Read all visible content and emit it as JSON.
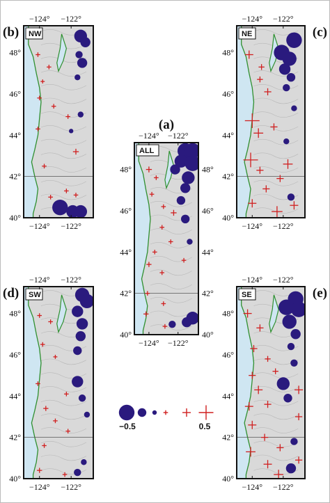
{
  "colors": {
    "negative": "#2a1a7e",
    "positive": "#d01f1f",
    "ocean": "#cfe6f2",
    "coast": "#2f8f2f",
    "relief": "#d9d9d9"
  },
  "panels": [
    {
      "id": "b",
      "label": "(b)",
      "tag": "NW",
      "lon_ticks": [
        "−124°",
        "−122°"
      ],
      "lat_ticks": [
        "48°",
        "46°",
        "44°",
        "42°",
        "40°"
      ],
      "lat_side": "left"
    },
    {
      "id": "c",
      "label": "(c)",
      "tag": "NE",
      "lon_ticks": [
        "−124°",
        "−122°"
      ],
      "lat_ticks": [
        "48°",
        "46°",
        "44°",
        "42°",
        "40°"
      ],
      "lat_side": "left"
    },
    {
      "id": "a",
      "label": "(a)",
      "tag": "ALL",
      "lon_ticks": [
        "−124°",
        "−122°"
      ],
      "lat_ticks": [
        "48°",
        "46°",
        "44°",
        "42°",
        "40°"
      ],
      "lat_side": "both"
    },
    {
      "id": "d",
      "label": "(d)",
      "tag": "SW",
      "lon_ticks": [
        "−124°",
        "−122°"
      ],
      "lat_ticks": [
        "48°",
        "46°",
        "44°",
        "42°",
        "40°"
      ],
      "lat_side": "left"
    },
    {
      "id": "e",
      "label": "(e)",
      "tag": "SE",
      "lon_ticks": [
        "−124°",
        "−122°"
      ],
      "lat_ticks": [
        "48°",
        "46°",
        "44°",
        "42°",
        "40°"
      ],
      "lat_side": "left"
    }
  ],
  "legend": {
    "min_label": "−0.5",
    "max_label": "0.5",
    "values": [
      -0.5,
      -0.25,
      -0.1,
      0.1,
      0.25,
      0.5
    ]
  },
  "stations": {
    "a": [
      [
        -121.5,
        48.9,
        -0.5
      ],
      [
        -121.0,
        48.9,
        -0.5
      ],
      [
        -121.8,
        48.4,
        -0.4
      ],
      [
        -121.0,
        48.3,
        -0.5
      ],
      [
        -122.2,
        48.0,
        -0.3
      ],
      [
        -121.3,
        47.6,
        -0.4
      ],
      [
        -121.5,
        47.1,
        -0.3
      ],
      [
        -121.8,
        46.5,
        -0.25
      ],
      [
        -121.5,
        45.6,
        -0.25
      ],
      [
        -121.2,
        44.5,
        -0.15
      ],
      [
        -121.0,
        40.8,
        -0.4
      ],
      [
        -121.4,
        40.6,
        -0.3
      ],
      [
        -122.4,
        40.5,
        -0.2
      ],
      [
        -124.0,
        48.0,
        0.15
      ],
      [
        -123.5,
        47.6,
        0.1
      ],
      [
        -123.8,
        46.8,
        0.1
      ],
      [
        -123.0,
        46.2,
        0.1
      ],
      [
        -122.3,
        45.9,
        0.15
      ],
      [
        -123.1,
        45.2,
        0.1
      ],
      [
        -122.5,
        44.5,
        0.1
      ],
      [
        -123.6,
        44.0,
        0.1
      ],
      [
        -124.0,
        43.4,
        0.12
      ],
      [
        -123.1,
        43.0,
        0.1
      ],
      [
        -121.6,
        43.6,
        0.1
      ],
      [
        -124.1,
        42.0,
        0.1
      ],
      [
        -123.0,
        41.5,
        0.1
      ],
      [
        -124.2,
        41.0,
        0.12
      ],
      [
        -122.9,
        40.4,
        0.1
      ]
    ],
    "b": [
      [
        -121.4,
        48.8,
        -0.4
      ],
      [
        -121.1,
        48.5,
        -0.3
      ],
      [
        -121.5,
        47.9,
        -0.2
      ],
      [
        -121.3,
        47.5,
        -0.3
      ],
      [
        -121.6,
        46.8,
        -0.15
      ],
      [
        -121.4,
        45.0,
        -0.15
      ],
      [
        -122.0,
        44.2,
        -0.1
      ],
      [
        -122.7,
        40.5,
        -0.5
      ],
      [
        -121.9,
        40.3,
        -0.4
      ],
      [
        -121.4,
        40.3,
        -0.4
      ],
      [
        -124.1,
        47.9,
        0.1
      ],
      [
        -123.4,
        47.3,
        0.1
      ],
      [
        -123.8,
        46.6,
        0.08
      ],
      [
        -124.0,
        45.8,
        0.1
      ],
      [
        -123.1,
        45.4,
        0.1
      ],
      [
        -124.1,
        44.3,
        0.1
      ],
      [
        -122.2,
        44.9,
        0.1
      ],
      [
        -121.7,
        43.2,
        0.15
      ],
      [
        -123.7,
        42.5,
        0.1
      ],
      [
        -122.3,
        41.3,
        0.1
      ],
      [
        -123.3,
        41.0,
        0.1
      ],
      [
        -121.7,
        41.1,
        0.1
      ]
    ],
    "c": [
      [
        -121.3,
        48.6,
        -0.5
      ],
      [
        -122.1,
        48.0,
        -0.5
      ],
      [
        -121.6,
        47.7,
        -0.45
      ],
      [
        -121.9,
        47.2,
        -0.35
      ],
      [
        -121.5,
        46.8,
        -0.25
      ],
      [
        -121.8,
        46.3,
        -0.2
      ],
      [
        -121.3,
        45.3,
        -0.15
      ],
      [
        -121.8,
        43.7,
        -0.15
      ],
      [
        -121.5,
        41.0,
        -0.2
      ],
      [
        -124.2,
        47.9,
        0.25
      ],
      [
        -123.4,
        47.3,
        0.15
      ],
      [
        -123.5,
        46.7,
        0.15
      ],
      [
        -123.0,
        46.1,
        0.2
      ],
      [
        -124.0,
        44.7,
        0.5
      ],
      [
        -123.6,
        44.1,
        0.3
      ],
      [
        -122.6,
        44.4,
        0.2
      ],
      [
        -124.1,
        42.8,
        0.5
      ],
      [
        -121.7,
        42.6,
        0.3
      ],
      [
        -123.5,
        42.3,
        0.2
      ],
      [
        -122.2,
        41.9,
        0.2
      ],
      [
        -123.1,
        41.4,
        0.2
      ],
      [
        -124.0,
        40.7,
        0.25
      ],
      [
        -122.4,
        40.3,
        0.35
      ],
      [
        -121.3,
        40.6,
        0.25
      ]
    ],
    "d": [
      [
        -121.3,
        48.9,
        -0.45
      ],
      [
        -121.0,
        48.6,
        -0.45
      ],
      [
        -121.6,
        48.1,
        -0.35
      ],
      [
        -121.3,
        47.5,
        -0.35
      ],
      [
        -121.4,
        46.9,
        -0.3
      ],
      [
        -121.6,
        46.2,
        -0.25
      ],
      [
        -121.6,
        44.7,
        -0.35
      ],
      [
        -121.3,
        43.9,
        -0.2
      ],
      [
        -121.0,
        43.1,
        -0.15
      ],
      [
        -121.2,
        40.8,
        -0.15
      ],
      [
        -121.6,
        40.3,
        -0.2
      ],
      [
        -124.0,
        47.9,
        0.1
      ],
      [
        -123.3,
        47.6,
        0.1
      ],
      [
        -123.8,
        46.5,
        0.1
      ],
      [
        -123.0,
        45.9,
        0.08
      ],
      [
        -124.1,
        44.6,
        0.1
      ],
      [
        -122.3,
        44.1,
        0.1
      ],
      [
        -123.6,
        43.4,
        0.12
      ],
      [
        -123.0,
        42.8,
        0.1
      ],
      [
        -122.2,
        42.3,
        0.1
      ],
      [
        -123.7,
        41.6,
        0.1
      ],
      [
        -124.0,
        40.4,
        0.12
      ],
      [
        -122.4,
        40.2,
        0.1
      ]
    ],
    "e": [
      [
        -121.2,
        48.7,
        -0.5
      ],
      [
        -121.8,
        48.3,
        -0.5
      ],
      [
        -121.0,
        48.2,
        -0.5
      ],
      [
        -121.6,
        47.6,
        -0.45
      ],
      [
        -121.2,
        47.0,
        -0.3
      ],
      [
        -121.5,
        46.4,
        -0.2
      ],
      [
        -121.3,
        45.6,
        -0.2
      ],
      [
        -122.0,
        44.6,
        -0.4
      ],
      [
        -121.7,
        43.9,
        -0.25
      ],
      [
        -121.3,
        41.8,
        -0.2
      ],
      [
        -121.5,
        40.5,
        -0.3
      ],
      [
        -124.3,
        48.0,
        0.25
      ],
      [
        -123.5,
        47.3,
        0.2
      ],
      [
        -123.9,
        46.3,
        0.2
      ],
      [
        -123.0,
        45.8,
        0.15
      ],
      [
        -124.0,
        45.0,
        0.2
      ],
      [
        -122.5,
        45.2,
        0.15
      ],
      [
        -123.6,
        44.3,
        0.25
      ],
      [
        -124.2,
        43.5,
        0.25
      ],
      [
        -123.0,
        43.6,
        0.2
      ],
      [
        -121.0,
        44.3,
        0.25
      ],
      [
        -121.0,
        43.0,
        0.2
      ],
      [
        -124.0,
        42.6,
        0.25
      ],
      [
        -123.2,
        42.0,
        0.2
      ],
      [
        -122.2,
        41.5,
        0.2
      ],
      [
        -124.1,
        41.3,
        0.3
      ],
      [
        -123.0,
        40.7,
        0.25
      ],
      [
        -122.3,
        40.2,
        0.3
      ],
      [
        -121.0,
        40.9,
        0.2
      ]
    ]
  }
}
